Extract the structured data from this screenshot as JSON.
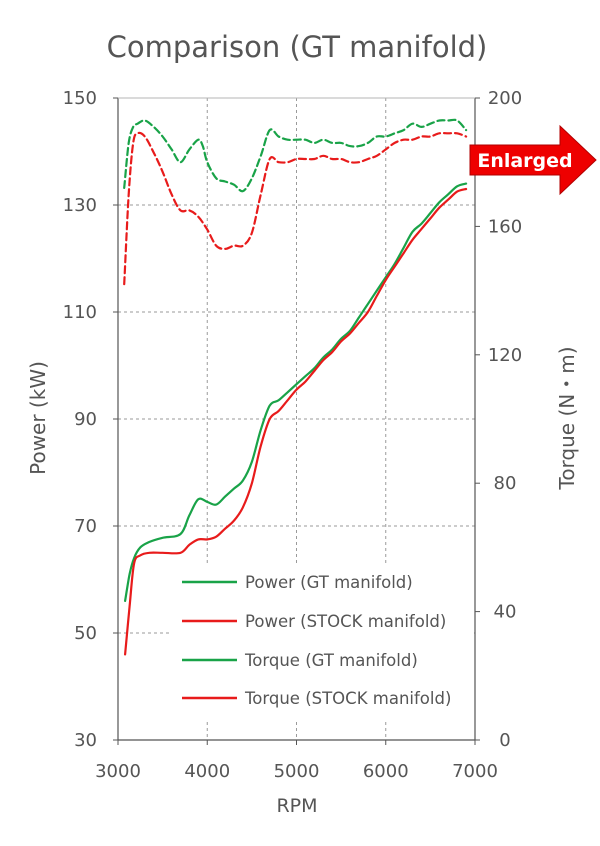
{
  "chart_data": {
    "type": "line",
    "title": "Comparison (GT manifold)",
    "xlabel": "RPM",
    "ylabel_left": "Power (kW)",
    "ylabel_right": "Torque (N・m)",
    "xlim": [
      3000,
      7000
    ],
    "ylim_left": [
      30,
      150
    ],
    "ylim_right": [
      0,
      200
    ],
    "x_ticks": [
      3000,
      4000,
      5000,
      6000,
      7000
    ],
    "y_ticks_left": [
      30,
      50,
      70,
      90,
      110,
      130,
      150
    ],
    "y_ticks_right": [
      0,
      40,
      80,
      120,
      160,
      200
    ],
    "grid": true,
    "legend_position": "center-right",
    "badge": "Enlarged",
    "colors": {
      "gt": "#19a348",
      "stock": "#e81b1b",
      "badge": "#ee0000"
    },
    "series": [
      {
        "name": "Power (GT manifold)",
        "axis": "left",
        "color": "#19a348",
        "dash": false,
        "x": [
          3080,
          3130,
          3180,
          3250,
          3350,
          3500,
          3700,
          3800,
          3900,
          4000,
          4100,
          4200,
          4300,
          4400,
          4500,
          4600,
          4700,
          4800,
          4900,
          5000,
          5100,
          5200,
          5300,
          5400,
          5500,
          5600,
          5700,
          5800,
          5900,
          6000,
          6100,
          6200,
          6300,
          6400,
          6500,
          6600,
          6700,
          6800,
          6900
        ],
        "y": [
          56,
          61,
          64,
          66,
          67,
          67.8,
          68.5,
          72,
          75,
          74.5,
          74,
          75.5,
          77,
          78.5,
          82,
          88,
          92.5,
          93.5,
          95,
          96.5,
          98,
          99.5,
          101.5,
          103,
          105,
          106.5,
          109,
          111.5,
          114,
          116.5,
          119,
          122,
          125,
          126.5,
          128.5,
          130.5,
          132,
          133.5,
          134
        ]
      },
      {
        "name": "Power (STOCK manifold)",
        "axis": "left",
        "color": "#e81b1b",
        "dash": false,
        "x": [
          3080,
          3130,
          3180,
          3250,
          3350,
          3500,
          3700,
          3800,
          3900,
          4000,
          4100,
          4200,
          4300,
          4400,
          4500,
          4600,
          4700,
          4800,
          4900,
          5000,
          5100,
          5200,
          5300,
          5400,
          5500,
          5600,
          5700,
          5800,
          5900,
          6000,
          6100,
          6200,
          6300,
          6400,
          6500,
          6600,
          6700,
          6800,
          6900
        ],
        "y": [
          46,
          55,
          63,
          64.5,
          65,
          65,
          65,
          66.5,
          67.5,
          67.5,
          68,
          69.5,
          71,
          73.5,
          78,
          85,
          90,
          91.5,
          93.5,
          95.5,
          97,
          99,
          101,
          102.5,
          104.5,
          106,
          108,
          110,
          113,
          116,
          118.5,
          121,
          123.5,
          125.5,
          127.5,
          129.5,
          131,
          132.5,
          133
        ]
      },
      {
        "name": "Torque (GT manifold)",
        "axis": "right",
        "color": "#19a348",
        "dash": true,
        "x": [
          3070,
          3120,
          3170,
          3220,
          3300,
          3400,
          3500,
          3600,
          3700,
          3800,
          3900,
          3950,
          4000,
          4100,
          4200,
          4300,
          4400,
          4500,
          4600,
          4700,
          4800,
          4900,
          5000,
          5100,
          5200,
          5300,
          5400,
          5500,
          5600,
          5700,
          5800,
          5900,
          6000,
          6100,
          6200,
          6300,
          6400,
          6500,
          6600,
          6700,
          6800,
          6900
        ],
        "y": [
          172,
          186,
          191,
          192,
          193,
          191,
          188,
          184,
          180,
          184,
          187,
          185,
          180,
          175,
          174,
          173,
          171,
          175,
          182,
          190,
          188,
          187,
          187,
          187,
          186,
          187,
          186,
          186,
          185,
          185,
          186,
          188,
          188,
          189,
          190,
          192,
          191,
          192,
          193,
          193,
          193,
          190
        ]
      },
      {
        "name": "Torque (STOCK manifold)",
        "axis": "right",
        "color": "#e81b1b",
        "dash": true,
        "x": [
          3070,
          3120,
          3170,
          3220,
          3300,
          3400,
          3500,
          3600,
          3700,
          3800,
          3900,
          4000,
          4100,
          4200,
          4300,
          4400,
          4500,
          4600,
          4700,
          4800,
          4900,
          5000,
          5100,
          5200,
          5300,
          5400,
          5500,
          5600,
          5700,
          5800,
          5900,
          6000,
          6100,
          6200,
          6300,
          6400,
          6500,
          6600,
          6700,
          6800,
          6900
        ],
        "y": [
          142,
          170,
          186,
          189,
          188,
          183,
          177,
          170,
          165,
          165,
          163,
          159,
          154,
          153,
          154,
          154,
          158,
          170,
          181,
          180,
          180,
          181,
          181,
          181,
          182,
          181,
          181,
          180,
          180,
          181,
          182,
          184,
          186,
          187,
          187,
          188,
          188,
          189,
          189,
          189,
          188
        ]
      }
    ]
  }
}
